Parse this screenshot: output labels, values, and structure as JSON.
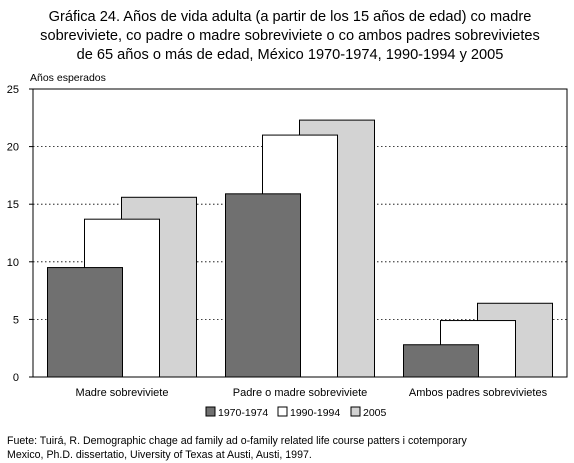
{
  "title_lines": [
    "Gráfica 24. Años de vida adulta (a partir de los 15 años de edad) co madre",
    "sobreviviete, co padre o madre sobreviviete o co ambos padres sobrevivietes",
    "de 65 años o más de edad,  México 1970-1974, 1990-1994 y 2005"
  ],
  "source_lines": [
    "Fuete: Tuirá, R. Demographic chage ad family ad o-family related life course patters i cotemporary",
    "Mexico, Ph.D. dissertatio, Uiversity of Texas at Austi, Austi, 1997."
  ],
  "chart_data": {
    "type": "bar",
    "title": "Gráfica 24. Años de vida adulta (a partir de los 15 años de edad) co madre sobreviviete, co padre o madre sobreviviete o co ambos padres sobrevivietes de 65 años o más de edad,  México 1970-1974, 1990-1994 y 2005",
    "ylabel": "Años esperados",
    "xlabel": "",
    "ylim": [
      0,
      25
    ],
    "yticks": [
      0,
      5,
      10,
      15,
      20,
      25
    ],
    "grid": "horizontal dotted",
    "legend_position": "bottom",
    "categories": [
      "Madre sobreviviete",
      "Padre o madre sobreviviete",
      "Ambos padres sobrevivietes"
    ],
    "series": [
      {
        "name": "1970-1974",
        "color": "#707070",
        "values": [
          9.5,
          15.9,
          2.8
        ]
      },
      {
        "name": "1990-1994",
        "color": "#ffffff",
        "values": [
          13.7,
          21.0,
          4.9
        ]
      },
      {
        "name": "2005",
        "color": "#d3d3d3",
        "values": [
          15.6,
          22.3,
          6.4
        ]
      }
    ]
  }
}
